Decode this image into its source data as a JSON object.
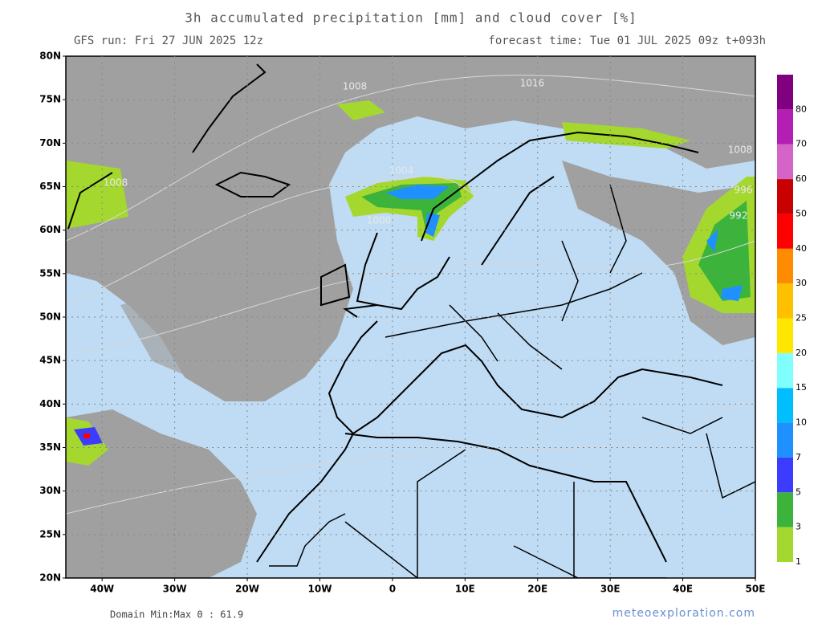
{
  "header": {
    "title": "3h accumulated precipitation [mm] and cloud cover [%]",
    "run": "GFS run: Fri 27 JUN 2025 12z",
    "forecast": "forecast time: Tue 01 JUL 2025 09z  t+093h"
  },
  "axes": {
    "lat_labels": [
      "80N",
      "75N",
      "70N",
      "65N",
      "60N",
      "55N",
      "50N",
      "45N",
      "40N",
      "35N",
      "30N",
      "25N",
      "20N"
    ],
    "lon_labels": [
      "40W",
      "30W",
      "20W",
      "10W",
      "0",
      "10E",
      "20E",
      "30E",
      "40E",
      "50E"
    ]
  },
  "isobars": [
    "1008",
    "1016",
    "1004",
    "1000",
    "1008",
    "996",
    "992",
    "1008"
  ],
  "colorbar": {
    "labels": [
      "1",
      "3",
      "5",
      "7",
      "10",
      "15",
      "20",
      "25",
      "30",
      "40",
      "50",
      "60",
      "70",
      "80"
    ],
    "colors": [
      "#a5d82e",
      "#3cb43c",
      "#3c3cff",
      "#1e90ff",
      "#00bfff",
      "#80ffff",
      "#ffe600",
      "#ffc000",
      "#ff8c00",
      "#ff0000",
      "#c80000",
      "#d464c8",
      "#b41eb4",
      "#800080"
    ]
  },
  "footer": {
    "minmax": "Domain Min:Max 0 : 61.9",
    "credit": "meteoexploration.com"
  }
}
